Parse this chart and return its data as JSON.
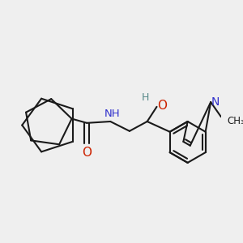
{
  "background_color": "#efefef",
  "bond_color": "#1a1a1a",
  "nitrogen_color": "#3030cc",
  "oxygen_color": "#cc2200",
  "hydrogen_color": "#558888",
  "line_width": 1.5,
  "figsize": [
    3.0,
    3.0
  ],
  "dpi": 100,
  "xlim": [
    0,
    300
  ],
  "ylim": [
    0,
    300
  ]
}
